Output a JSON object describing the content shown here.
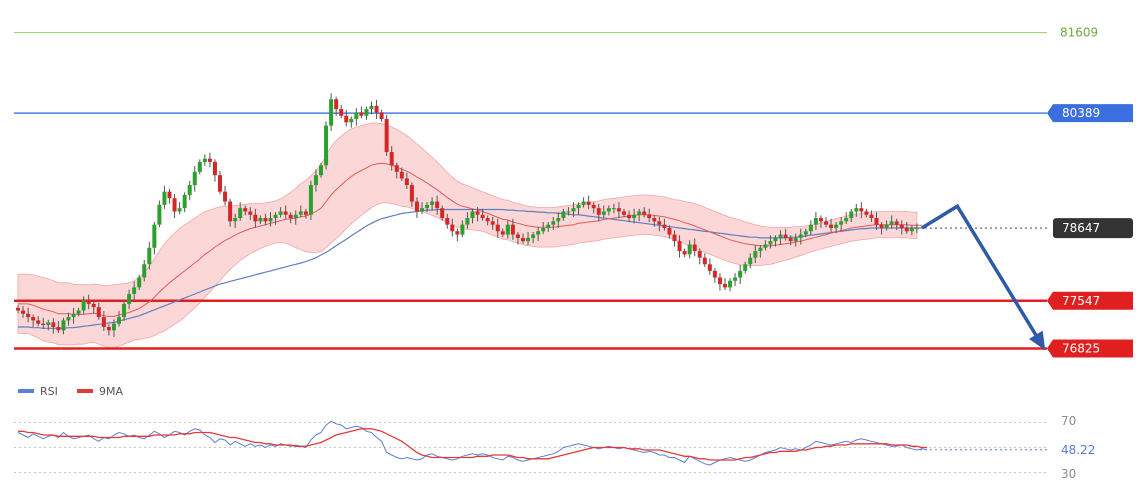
{
  "chart_data": [
    {
      "type": "candlestick",
      "title": "",
      "ylim": [
        76650,
        81800
      ],
      "colors": {
        "up": "#2ca02c",
        "down": "#d62728",
        "bands_fill": "#f9c9c9",
        "bands_edge": "#f2a8a8",
        "ma_fast": "#e55a5a",
        "ma_slow": "#5f7fc4"
      },
      "levels": [
        {
          "name": "level-81609",
          "value": 81609,
          "label": "81609",
          "style": "green-thin",
          "color": "#9acd6e",
          "text_color": "#6ea842"
        },
        {
          "name": "level-80389",
          "value": 80389,
          "label": "80389",
          "style": "blue",
          "color": "#4d7fe6",
          "box_color": "#3b6fe0"
        },
        {
          "name": "level-78647",
          "value": 78647,
          "label": "78647",
          "style": "dotted-current",
          "color": "#444444",
          "box_color": "#333333"
        },
        {
          "name": "level-77547",
          "value": 77547,
          "label": "77547",
          "style": "red",
          "color": "#e02020",
          "box_color": "#e02020"
        },
        {
          "name": "level-76825",
          "value": 76825,
          "label": "76825",
          "style": "red",
          "color": "#e02020",
          "box_color": "#e02020"
        }
      ],
      "forecast_path": [
        {
          "bar": 179,
          "value": 78650
        },
        {
          "bar": 186,
          "value": 78980
        },
        {
          "bar": 203,
          "value": 76850
        }
      ],
      "candles_close": [
        77400,
        77350,
        77300,
        77250,
        77200,
        77180,
        77220,
        77150,
        77100,
        77250,
        77300,
        77350,
        77400,
        77550,
        77500,
        77450,
        77300,
        77150,
        77100,
        77200,
        77300,
        77500,
        77650,
        77750,
        77900,
        78100,
        78350,
        78700,
        79000,
        79200,
        79100,
        78900,
        78950,
        79150,
        79300,
        79500,
        79650,
        79700,
        79650,
        79450,
        79200,
        79050,
        78750,
        78800,
        78950,
        78900,
        78850,
        78750,
        78800,
        78750,
        78800,
        78850,
        78900,
        78850,
        78800,
        78850,
        78900,
        78850,
        79300,
        79450,
        79600,
        80200,
        80600,
        80450,
        80350,
        80250,
        80300,
        80400,
        80350,
        80450,
        80500,
        80400,
        80300,
        79800,
        79600,
        79500,
        79400,
        79300,
        79050,
        78900,
        78950,
        79000,
        79050,
        78950,
        78800,
        78700,
        78600,
        78550,
        78700,
        78800,
        78900,
        78850,
        78800,
        78750,
        78700,
        78600,
        78550,
        78700,
        78550,
        78500,
        78450,
        78500,
        78550,
        78600,
        78650,
        78700,
        78750,
        78800,
        78900,
        78900,
        78950,
        79000,
        79050,
        79000,
        78950,
        78850,
        78900,
        78950,
        78950,
        78900,
        78850,
        78800,
        78850,
        78900,
        78850,
        78800,
        78750,
        78700,
        78650,
        78550,
        78450,
        78300,
        78250,
        78400,
        78300,
        78200,
        78100,
        78000,
        77900,
        77800,
        77750,
        77850,
        77900,
        78000,
        78100,
        78200,
        78300,
        78350,
        78400,
        78450,
        78500,
        78550,
        78500,
        78450,
        78500,
        78550,
        78600,
        78700,
        78800,
        78750,
        78700,
        78650,
        78700,
        78750,
        78800,
        78900,
        78950,
        78900,
        78850,
        78800,
        78700,
        78650,
        78700,
        78750,
        78700,
        78650,
        78600,
        78650,
        78650
      ],
      "price_ma20": [
        77500,
        77500,
        77500,
        77480,
        77450,
        77420,
        77400,
        77380,
        77350,
        77350,
        77350,
        77340,
        77340,
        77340,
        77350,
        77360,
        77340,
        77320,
        77310,
        77310,
        77330,
        77350,
        77370,
        77400,
        77430,
        77480,
        77530,
        77600,
        77680,
        77750,
        77820,
        77880,
        77940,
        78000,
        78060,
        78120,
        78180,
        78250,
        78300,
        78360,
        78410,
        78460,
        78500,
        78540,
        78580,
        78610,
        78640,
        78660,
        78680,
        78700,
        78720,
        78740,
        78760,
        78780,
        78790,
        78800,
        78820,
        78830,
        78860,
        78900,
        78950,
        79050,
        79150,
        79230,
        79300,
        79370,
        79430,
        79480,
        79520,
        79560,
        79600,
        79620,
        79630,
        79620,
        79600,
        79570,
        79540,
        79510,
        79470,
        79420,
        79380,
        79330,
        79280,
        79230,
        79170,
        79110,
        79060,
        79010,
        78980,
        78960,
        78940,
        78920,
        78900,
        78870,
        78840,
        78810,
        78780,
        78770,
        78740,
        78720,
        78700,
        78680,
        78670,
        78660,
        78660,
        78660,
        78660,
        78670,
        78680,
        78690,
        78700,
        78720,
        78730,
        78740,
        78750,
        78760,
        78780,
        78790,
        78800,
        78810,
        78820,
        78830,
        78840,
        78850,
        78850,
        78850,
        78840,
        78830,
        78820,
        78800,
        78780,
        78760,
        78730,
        78710,
        78680,
        78650,
        78620,
        78590,
        78560,
        78530,
        78500,
        78470,
        78450,
        78430,
        78410,
        78400,
        78390,
        78380,
        78380,
        78380,
        78390,
        78400,
        78410,
        78420,
        78440,
        78450,
        78470,
        78490,
        78510,
        78530,
        78550,
        78570,
        78590,
        78610,
        78630,
        78650,
        78660,
        78670,
        78680,
        78690,
        78700,
        78700,
        78700,
        78700,
        78700,
        78700,
        78700,
        78690,
        78690,
        78690
      ],
      "price_ma50": [
        77150,
        77150,
        77150,
        77140,
        77140,
        77130,
        77130,
        77130,
        77130,
        77130,
        77140,
        77140,
        77150,
        77160,
        77170,
        77180,
        77190,
        77200,
        77210,
        77220,
        77240,
        77260,
        77280,
        77300,
        77320,
        77350,
        77380,
        77410,
        77440,
        77470,
        77500,
        77530,
        77560,
        77590,
        77620,
        77650,
        77680,
        77710,
        77740,
        77770,
        77800,
        77820,
        77840,
        77860,
        77880,
        77900,
        77920,
        77940,
        77960,
        77980,
        78000,
        78020,
        78040,
        78060,
        78080,
        78100,
        78120,
        78140,
        78170,
        78200,
        78240,
        78280,
        78330,
        78380,
        78430,
        78480,
        78530,
        78580,
        78630,
        78680,
        78720,
        78760,
        78790,
        78810,
        78830,
        78850,
        78870,
        78880,
        78890,
        78900,
        78910,
        78920,
        78920,
        78930,
        78930,
        78930,
        78930,
        78930,
        78930,
        78930,
        78930,
        78930,
        78930,
        78930,
        78930,
        78930,
        78930,
        78920,
        78920,
        78910,
        78910,
        78900,
        78900,
        78890,
        78890,
        78880,
        78880,
        78870,
        78870,
        78860,
        78850,
        78850,
        78840,
        78830,
        78820,
        78810,
        78800,
        78790,
        78780,
        78770,
        78760,
        78750,
        78740,
        78730,
        78720,
        78710,
        78700,
        78690,
        78680,
        78670,
        78660,
        78650,
        78640,
        78630,
        78620,
        78610,
        78600,
        78590,
        78580,
        78570,
        78560,
        78550,
        78540,
        78530,
        78520,
        78510,
        78510,
        78500,
        78500,
        78500,
        78500,
        78500,
        78500,
        78510,
        78510,
        78520,
        78530,
        78540,
        78550,
        78560,
        78570,
        78580,
        78590,
        78600,
        78610,
        78620,
        78630,
        78640,
        78640,
        78650,
        78650,
        78650,
        78650,
        78650,
        78650,
        78650,
        78650,
        78650,
        78650,
        78650,
        78650
      ],
      "bands_width": [
        450,
        450,
        450,
        460,
        470,
        480,
        480,
        470,
        470,
        470,
        470,
        460,
        450,
        450,
        440,
        440,
        450,
        460,
        470,
        480,
        470,
        460,
        450,
        450,
        470,
        500,
        540,
        580,
        620,
        660,
        680,
        690,
        700,
        700,
        690,
        680,
        670,
        650,
        620,
        590,
        560,
        520,
        480,
        450,
        420,
        400,
        380,
        360,
        340,
        330,
        320,
        320,
        330,
        360,
        400,
        450,
        500,
        540,
        580,
        620,
        660,
        700,
        730,
        740,
        740,
        730,
        720,
        700,
        680,
        660,
        640,
        620,
        600,
        590,
        580,
        570,
        560,
        540,
        520,
        500,
        480,
        460,
        440,
        420,
        400,
        380,
        360,
        350,
        340,
        330,
        320,
        310,
        300,
        300,
        300,
        300,
        300,
        300,
        300,
        300,
        300,
        300,
        300,
        300,
        300,
        300,
        300,
        300,
        300,
        300,
        300,
        300,
        300,
        300,
        300,
        300,
        300,
        300,
        300,
        300,
        300,
        300,
        300,
        300,
        300,
        300,
        300,
        300,
        300,
        300,
        300,
        310,
        320,
        330,
        340,
        340,
        340,
        340,
        340,
        340,
        340,
        340,
        340,
        340,
        330,
        320,
        310,
        300,
        290,
        280,
        270,
        260,
        250,
        240,
        230,
        220,
        210,
        200,
        200,
        200,
        200,
        200,
        200,
        200,
        200,
        200,
        200,
        200,
        200,
        200,
        200,
        200,
        200,
        200,
        200,
        200,
        200,
        200,
        200
      ]
    },
    {
      "type": "line",
      "title": "",
      "ylim": [
        24,
        80
      ],
      "ticks": [
        {
          "value": 70,
          "label": "70"
        },
        {
          "value": 30,
          "label": "30"
        }
      ],
      "last_value_label": "48.22",
      "series": [
        {
          "name": "RSI",
          "color": "#5b7fd6",
          "values": [
            62,
            60,
            58,
            61,
            59,
            57,
            59,
            60,
            58,
            62,
            59,
            57,
            58,
            59,
            60,
            57,
            55,
            58,
            57,
            60,
            62,
            61,
            59,
            60,
            58,
            57,
            60,
            63,
            61,
            58,
            60,
            63,
            62,
            60,
            63,
            65,
            64,
            60,
            58,
            54,
            57,
            56,
            52,
            55,
            53,
            51,
            53,
            51,
            52,
            50,
            52,
            51,
            53,
            52,
            51,
            52,
            51,
            50,
            56,
            60,
            62,
            68,
            71,
            69,
            68,
            65,
            66,
            67,
            66,
            63,
            62,
            58,
            55,
            46,
            44,
            42,
            41,
            42,
            41,
            40,
            41,
            44,
            45,
            43,
            42,
            41,
            40,
            41,
            43,
            44,
            45,
            44,
            45,
            44,
            42,
            41,
            40,
            43,
            42,
            40,
            39,
            40,
            41,
            42,
            43,
            44,
            45,
            47,
            50,
            51,
            52,
            53,
            52,
            51,
            50,
            49,
            50,
            51,
            50,
            49,
            50,
            49,
            48,
            47,
            46,
            47,
            46,
            44,
            44,
            42,
            42,
            40,
            38,
            43,
            41,
            39,
            37,
            36,
            38,
            40,
            41,
            42,
            41,
            40,
            39,
            40,
            42,
            44,
            46,
            47,
            48,
            50,
            49,
            48,
            49,
            48,
            50,
            52,
            55,
            54,
            53,
            52,
            53,
            54,
            55,
            54,
            56,
            57,
            56,
            55,
            54,
            53,
            52,
            51,
            51,
            52,
            50,
            49,
            48,
            49,
            48.22
          ]
        },
        {
          "name": "9MA",
          "color": "#e23a3a",
          "values": [
            63,
            63,
            62,
            62,
            61,
            60,
            60,
            60,
            59,
            59,
            59,
            59,
            59,
            59,
            59,
            59,
            58,
            58,
            58,
            58,
            58,
            59,
            59,
            59,
            59,
            59,
            59,
            60,
            60,
            60,
            60,
            60,
            61,
            61,
            61,
            62,
            62,
            62,
            62,
            61,
            60,
            59,
            58,
            58,
            57,
            56,
            55,
            54,
            54,
            53,
            53,
            52,
            52,
            52,
            52,
            51,
            51,
            51,
            52,
            53,
            54,
            56,
            58,
            60,
            61,
            62,
            63,
            64,
            65,
            65,
            65,
            64,
            63,
            61,
            59,
            57,
            55,
            52,
            49,
            46,
            44,
            43,
            42,
            42,
            42,
            42,
            42,
            42,
            42,
            42,
            42,
            43,
            43,
            43,
            44,
            44,
            44,
            44,
            43,
            42,
            42,
            41,
            41,
            41,
            41,
            41,
            42,
            43,
            44,
            45,
            46,
            47,
            48,
            49,
            50,
            50,
            50,
            50,
            50,
            50,
            50,
            49,
            49,
            49,
            48,
            48,
            48,
            48,
            47,
            46,
            45,
            44,
            43,
            43,
            42,
            41,
            41,
            40,
            40,
            40,
            40,
            40,
            40,
            41,
            42,
            42,
            43,
            44,
            45,
            46,
            46,
            47,
            47,
            47,
            47,
            48,
            48,
            49,
            50,
            50,
            51,
            51,
            52,
            52,
            52,
            53,
            53,
            53,
            53,
            53,
            53,
            53,
            53,
            52,
            52,
            52,
            52,
            51,
            51,
            50,
            50
          ]
        }
      ]
    }
  ]
}
